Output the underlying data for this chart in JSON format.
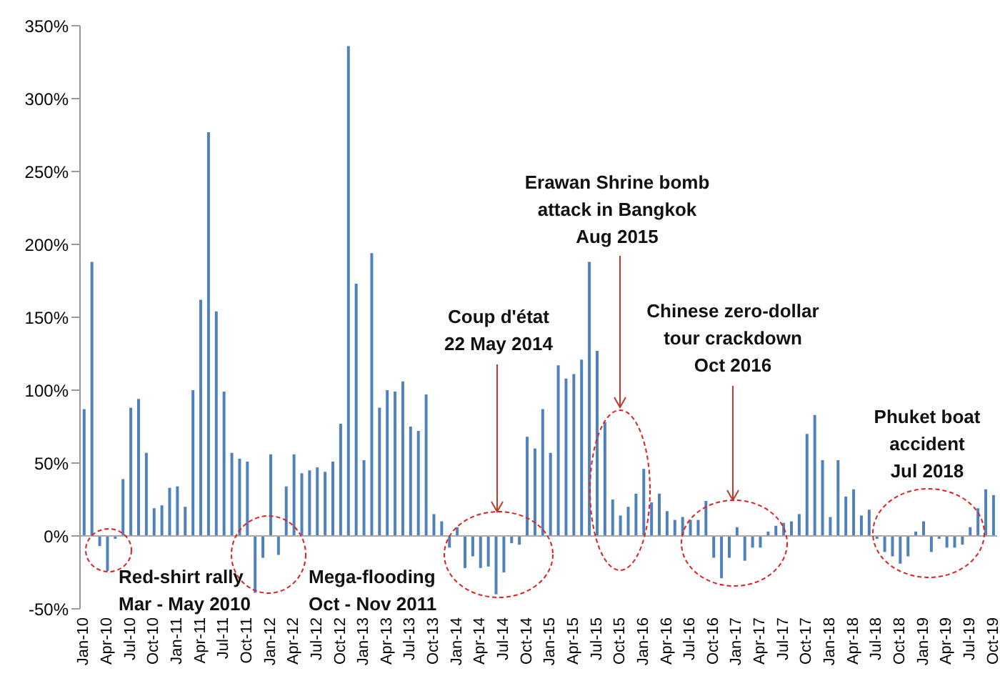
{
  "chart_data": {
    "type": "bar",
    "categories": [
      "Jan-10",
      null,
      null,
      "Apr-10",
      null,
      null,
      "Jul-10",
      null,
      null,
      "Oct-10",
      null,
      null,
      "Jan-11",
      null,
      null,
      "Apr-11",
      null,
      null,
      "Jul-11",
      null,
      null,
      "Oct-11",
      null,
      null,
      "Jan-12",
      null,
      null,
      "Apr-12",
      null,
      null,
      "Jul-12",
      null,
      null,
      "Oct-12",
      null,
      null,
      "Jan-13",
      null,
      null,
      "Apr-13",
      null,
      null,
      "Jul-13",
      null,
      null,
      "Oct-13",
      null,
      null,
      "Jan-14",
      null,
      null,
      "Apr-14",
      null,
      null,
      "Jul-14",
      null,
      null,
      "Oct-14",
      null,
      null,
      "Jan-15",
      null,
      null,
      "Apr-15",
      null,
      null,
      "Jul-15",
      null,
      null,
      "Oct-15",
      null,
      null,
      "Jan-16",
      null,
      null,
      "Apr-16",
      null,
      null,
      "Jul-16",
      null,
      null,
      "Oct-16",
      null,
      null,
      "Jan-17",
      null,
      null,
      "Apr-17",
      null,
      null,
      "Jul-17",
      null,
      null,
      "Oct-17",
      null,
      null,
      "Jan-18",
      null,
      null,
      "Apr-18",
      null,
      null,
      "Jul-18",
      null,
      null,
      "Oct-18",
      null,
      null,
      "Jan-19",
      null,
      null,
      "Apr-19",
      null,
      null,
      "Jul-19",
      null,
      null,
      "Oct-19"
    ],
    "values": [
      87,
      188,
      -7,
      -24,
      -2,
      39,
      88,
      94,
      57,
      19,
      21,
      33,
      34,
      20,
      100,
      162,
      277,
      154,
      99,
      57,
      53,
      51,
      -39,
      -15,
      56,
      -13,
      34,
      56,
      43,
      45,
      47,
      44,
      51,
      77,
      336,
      173,
      52,
      194,
      88,
      100,
      99,
      106,
      75,
      72,
      97,
      15,
      10,
      -8,
      6,
      -22,
      -14,
      -22,
      -21,
      -40,
      -25,
      -5,
      -6,
      68,
      60,
      87,
      57,
      117,
      108,
      111,
      121,
      188,
      127,
      78,
      25,
      14,
      20,
      29,
      46,
      23,
      29,
      17,
      11,
      13,
      11,
      11,
      24,
      -15,
      -29,
      -15,
      6,
      -17,
      -8,
      -8,
      3,
      7,
      9,
      10,
      15,
      70,
      83,
      52,
      13,
      52,
      27,
      32,
      14,
      18,
      -2,
      -11,
      -14,
      -19,
      -14,
      3,
      10,
      -11,
      -2,
      -8,
      -8,
      -6,
      6,
      19,
      32,
      28
    ],
    "color": "#4f81bd",
    "ylim": [
      -50,
      350
    ],
    "yticks": [
      {
        "value": -50,
        "label": "-50%"
      },
      {
        "value": 0,
        "label": "0%"
      },
      {
        "value": 50,
        "label": "50%"
      },
      {
        "value": 100,
        "label": "100%"
      },
      {
        "value": 150,
        "label": "150%"
      },
      {
        "value": 200,
        "label": "200%"
      },
      {
        "value": 250,
        "label": "250%"
      },
      {
        "value": 300,
        "label": "300%"
      },
      {
        "value": 350,
        "label": "350%"
      }
    ],
    "grid": false,
    "ref_lines": [
      {
        "axis": "y",
        "value": 0,
        "color": "#aaaaaa"
      }
    ],
    "legend": false,
    "annotations": [
      "Red-shirt rally\nMar - May 2010",
      "Mega-flooding\nOct - Nov 2011",
      "Coup d'état\n22 May 2014",
      "Erawan Shrine bomb\nattack in Bangkok\nAug 2015",
      "Chinese zero-dollar\ntour crackdown\nOct 2016",
      "Phuket boat\naccident\nJul 2018"
    ]
  }
}
